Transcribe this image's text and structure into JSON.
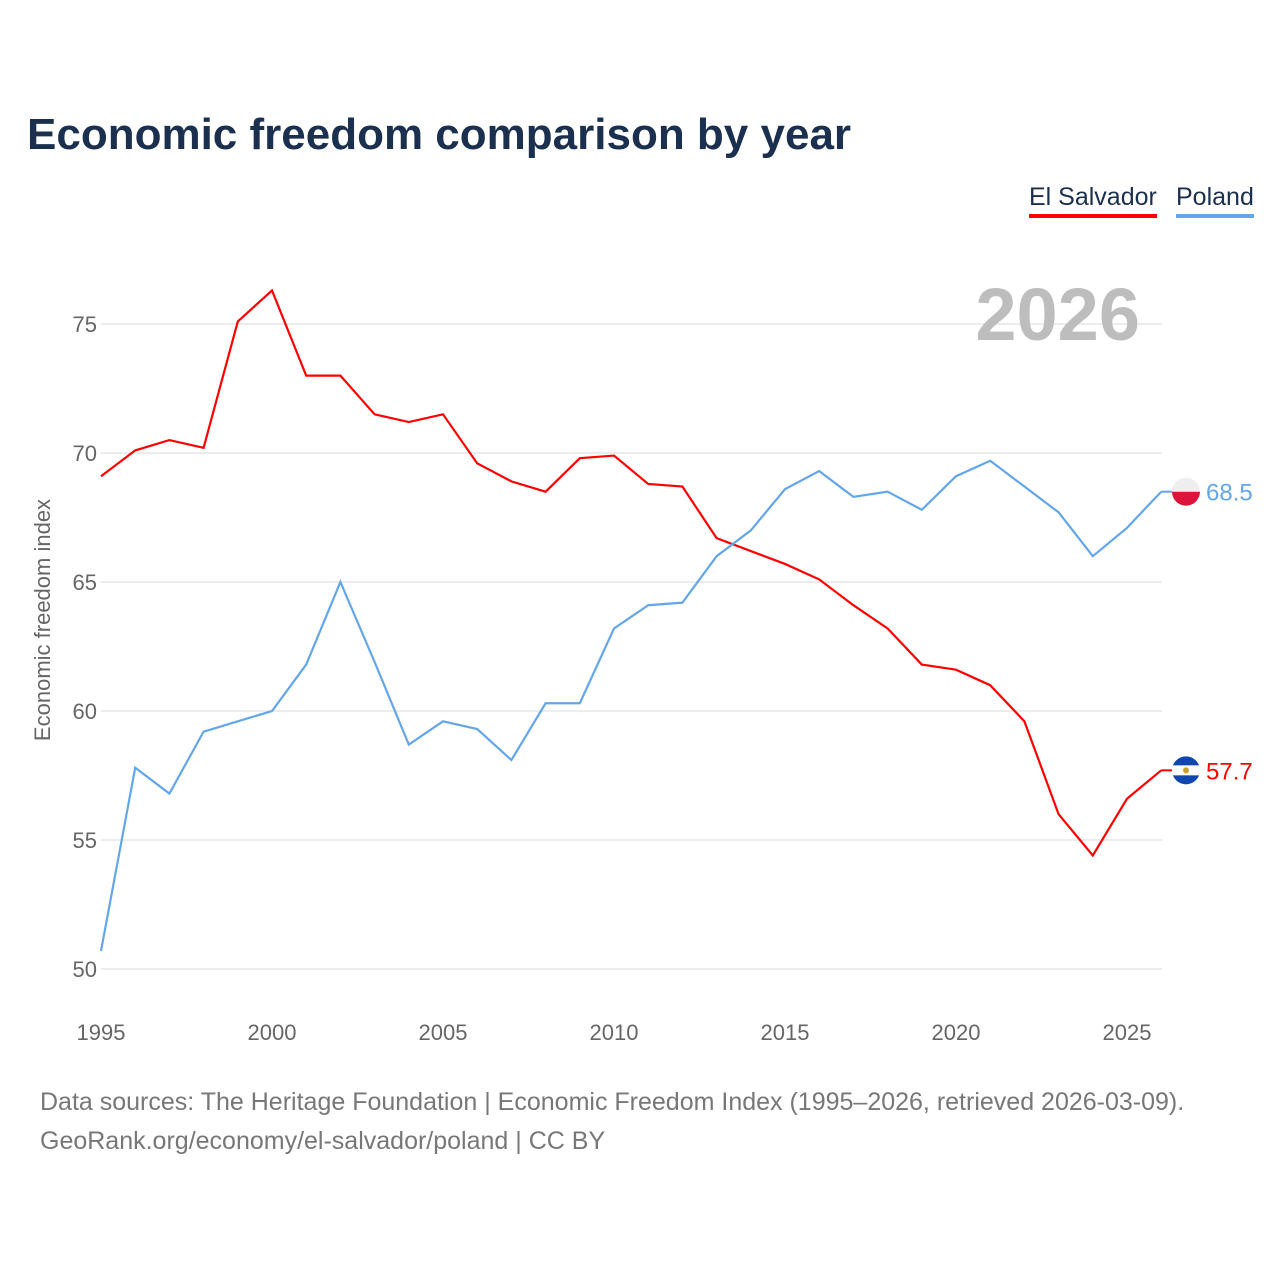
{
  "chart_data": {
    "type": "line",
    "title": "Economic freedom comparison by year",
    "xlabel": "",
    "ylabel": "Economic freedom index",
    "year_label": "2026",
    "xlim": [
      1995,
      2026
    ],
    "ylim": [
      50,
      77
    ],
    "xticks": [
      1995,
      2000,
      2005,
      2010,
      2015,
      2020,
      2025
    ],
    "yticks": [
      50,
      55,
      60,
      65,
      70,
      75
    ],
    "grid": true,
    "legend_position": "top-right",
    "x": [
      1995,
      1996,
      1997,
      1998,
      1999,
      2000,
      2001,
      2002,
      2003,
      2004,
      2005,
      2006,
      2007,
      2008,
      2009,
      2010,
      2011,
      2012,
      2013,
      2014,
      2015,
      2016,
      2017,
      2018,
      2019,
      2020,
      2021,
      2022,
      2023,
      2024,
      2025,
      2026
    ],
    "series": [
      {
        "name": "El Salvador",
        "color": "#ff0000",
        "end_label": "57.7",
        "flag": "el-salvador-flag",
        "values": [
          69.1,
          70.1,
          70.5,
          70.2,
          75.1,
          76.3,
          73.0,
          73.0,
          71.5,
          71.2,
          71.5,
          69.6,
          68.9,
          68.5,
          69.8,
          69.9,
          68.8,
          68.7,
          66.7,
          66.2,
          65.7,
          65.1,
          64.1,
          63.2,
          61.8,
          61.6,
          61.0,
          59.6,
          56.0,
          54.4,
          56.6,
          57.7
        ]
      },
      {
        "name": "Poland",
        "color": "#64a6ea",
        "end_label": "68.5",
        "flag": "poland-flag",
        "values": [
          50.7,
          57.8,
          56.8,
          59.2,
          59.6,
          60.0,
          61.8,
          65.0,
          61.9,
          58.7,
          59.6,
          59.3,
          58.1,
          60.3,
          60.3,
          63.2,
          64.1,
          64.2,
          66.0,
          67.0,
          68.6,
          69.3,
          68.3,
          68.5,
          67.8,
          69.1,
          69.7,
          68.7,
          67.7,
          66.0,
          67.1,
          68.5
        ]
      }
    ]
  },
  "sources": {
    "line1": "Data sources: The Heritage Foundation | Economic Freedom Index (1995–2026, retrieved 2026-03-09).",
    "line2": "GeoRank.org/economy/el-salvador/poland | CC BY"
  }
}
